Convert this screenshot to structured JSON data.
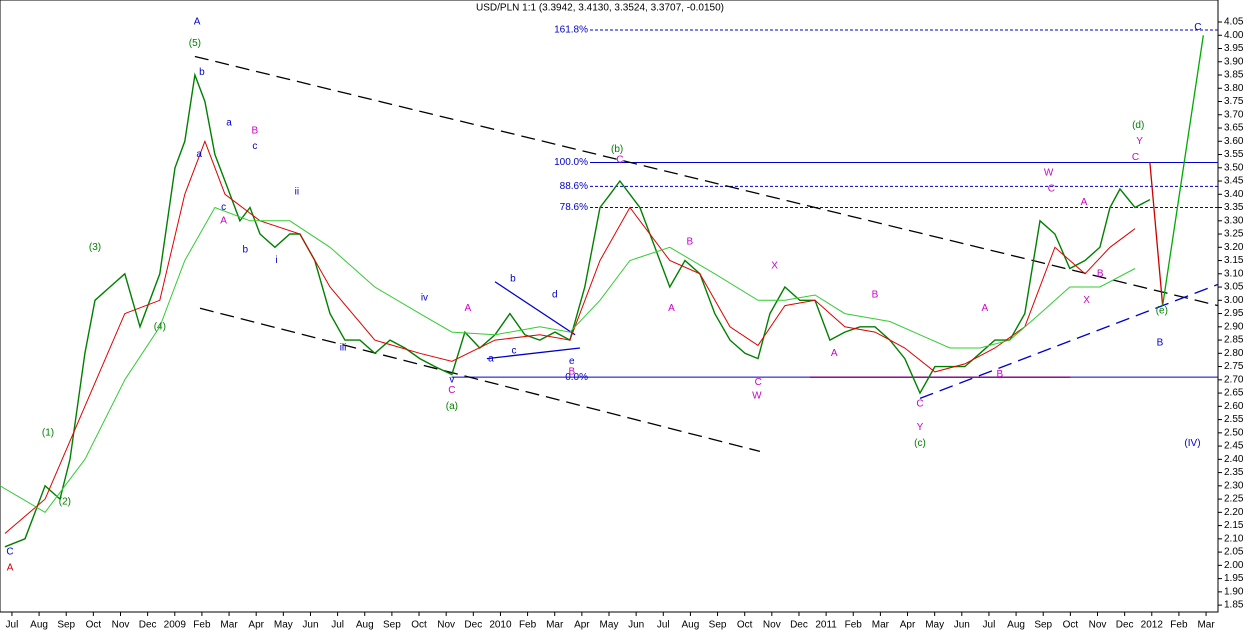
{
  "chart_data": {
    "type": "line",
    "title": "USD/PLN 1:1 (3.3942, 3.4130, 3.3524, 3.3707, -0.0150)",
    "xlim": [
      -0.44,
      44.44
    ],
    "ylim": [
      1.824,
      4.133
    ],
    "xticks": [
      {
        "value": 0,
        "label": "Jul"
      },
      {
        "value": 1,
        "label": "Aug"
      },
      {
        "value": 2,
        "label": "Sep"
      },
      {
        "value": 3,
        "label": "Oct"
      },
      {
        "value": 4,
        "label": "Nov"
      },
      {
        "value": 5,
        "label": "Dec"
      },
      {
        "value": 6,
        "label": "2009"
      },
      {
        "value": 7,
        "label": "Feb"
      },
      {
        "value": 8,
        "label": "Mar"
      },
      {
        "value": 9,
        "label": "Apr"
      },
      {
        "value": 10,
        "label": "May"
      },
      {
        "value": 11,
        "label": "Jun"
      },
      {
        "value": 12,
        "label": "Jul"
      },
      {
        "value": 13,
        "label": "Aug"
      },
      {
        "value": 14,
        "label": "Sep"
      },
      {
        "value": 15,
        "label": "Oct"
      },
      {
        "value": 16,
        "label": "Nov"
      },
      {
        "value": 17,
        "label": "Dec"
      },
      {
        "value": 18,
        "label": "2010"
      },
      {
        "value": 19,
        "label": "Feb"
      },
      {
        "value": 20,
        "label": "Mar"
      },
      {
        "value": 21,
        "label": "Apr"
      },
      {
        "value": 22,
        "label": "May"
      },
      {
        "value": 23,
        "label": "Jun"
      },
      {
        "value": 24,
        "label": "Jul"
      },
      {
        "value": 25,
        "label": "Aug"
      },
      {
        "value": 26,
        "label": "Sep"
      },
      {
        "value": 27,
        "label": "Oct"
      },
      {
        "value": 28,
        "label": "Nov"
      },
      {
        "value": 29,
        "label": "Dec"
      },
      {
        "value": 30,
        "label": "2011"
      },
      {
        "value": 31,
        "label": "Feb"
      },
      {
        "value": 32,
        "label": "Mar"
      },
      {
        "value": 33,
        "label": "Apr"
      },
      {
        "value": 34,
        "label": "May"
      },
      {
        "value": 35,
        "label": "Jun"
      },
      {
        "value": 36,
        "label": "Jul"
      },
      {
        "value": 37,
        "label": "Aug"
      },
      {
        "value": 38,
        "label": "Sep"
      },
      {
        "value": 39,
        "label": "Oct"
      },
      {
        "value": 40,
        "label": "Nov"
      },
      {
        "value": 41,
        "label": "Dec"
      },
      {
        "value": 42,
        "label": "2012"
      },
      {
        "value": 43,
        "label": "Feb"
      },
      {
        "value": 44,
        "label": "Mar"
      }
    ],
    "yticks": [
      {
        "value": 1.85,
        "label": "1.85"
      },
      {
        "value": 1.9,
        "label": "1.90"
      },
      {
        "value": 1.95,
        "label": "1.95"
      },
      {
        "value": 2,
        "label": "2.00"
      },
      {
        "value": 2.05,
        "label": "2.05"
      },
      {
        "value": 2.1,
        "label": "2.10"
      },
      {
        "value": 2.15,
        "label": "2.15"
      },
      {
        "value": 2.2,
        "label": "2.20"
      },
      {
        "value": 2.25,
        "label": "2.25"
      },
      {
        "value": 2.3,
        "label": "2.30"
      },
      {
        "value": 2.35,
        "label": "2.35"
      },
      {
        "value": 2.4,
        "label": "2.40"
      },
      {
        "value": 2.45,
        "label": "2.45"
      },
      {
        "value": 2.5,
        "label": "2.50"
      },
      {
        "value": 2.55,
        "label": "2.55"
      },
      {
        "value": 2.6,
        "label": "2.60"
      },
      {
        "value": 2.65,
        "label": "2.65"
      },
      {
        "value": 2.7,
        "label": "2.70"
      },
      {
        "value": 2.75,
        "label": "2.75"
      },
      {
        "value": 2.8,
        "label": "2.80"
      },
      {
        "value": 2.85,
        "label": "2.85"
      },
      {
        "value": 2.9,
        "label": "2.90"
      },
      {
        "value": 2.95,
        "label": "2.95"
      },
      {
        "value": 3,
        "label": "3.00"
      },
      {
        "value": 3.05,
        "label": "3.05"
      },
      {
        "value": 3.1,
        "label": "3.10"
      },
      {
        "value": 3.15,
        "label": "3.15"
      },
      {
        "value": 3.2,
        "label": "3.20"
      },
      {
        "value": 3.25,
        "label": "3.25"
      },
      {
        "value": 3.3,
        "label": "3.30"
      },
      {
        "value": 3.35,
        "label": "3.35"
      },
      {
        "value": 3.4,
        "label": "3.40"
      },
      {
        "value": 3.45,
        "label": "3.45"
      },
      {
        "value": 3.5,
        "label": "3.50"
      },
      {
        "value": 3.55,
        "label": "3.55"
      },
      {
        "value": 3.6,
        "label": "3.60"
      },
      {
        "value": 3.65,
        "label": "3.65"
      },
      {
        "value": 3.7,
        "label": "3.70"
      },
      {
        "value": 3.75,
        "label": "3.75"
      },
      {
        "value": 3.8,
        "label": "3.80"
      },
      {
        "value": 3.85,
        "label": "3.85"
      },
      {
        "value": 3.9,
        "label": "3.90"
      },
      {
        "value": 3.95,
        "label": "3.95"
      },
      {
        "value": 4,
        "label": "4.00"
      },
      {
        "value": 4.05,
        "label": "4.05"
      }
    ],
    "series": [
      {
        "color": "#008000",
        "width": 1.4,
        "x": [
          -0.26,
          0.48,
          1.22,
          1.77,
          2.14,
          2.69,
          3.06,
          3.61,
          4.16,
          4.72,
          5.45,
          6.01,
          6.37,
          6.74,
          7.11,
          7.48,
          7.85,
          8.4,
          8.77,
          9.14,
          9.69,
          10.24,
          10.61,
          11.16,
          11.72,
          12.27,
          12.82,
          13.37,
          13.93,
          14.48,
          15.03,
          15.59,
          16.21,
          16.69,
          17.24,
          17.8,
          18.35,
          18.9,
          19.45,
          20.01,
          20.56,
          21.11,
          21.67,
          22.04,
          22.4,
          22.77,
          23.14,
          23.69,
          24.24,
          24.8,
          25.35,
          25.9,
          26.46,
          27.01,
          27.49,
          27.93,
          28.48,
          29.03,
          29.59,
          30.14,
          30.69,
          31.25,
          31.8,
          32.35,
          32.9,
          33.46,
          34.01,
          34.56,
          35.11,
          35.67,
          36.22,
          36.77,
          37.32,
          37.88,
          38.43,
          38.98,
          39.54,
          40.09,
          40.46,
          40.83,
          41.38,
          41.93
        ],
        "values": [
          2.07,
          2.1,
          2.3,
          2.25,
          2.4,
          2.8,
          3.0,
          3.05,
          3.1,
          2.9,
          3.1,
          3.5,
          3.6,
          3.85,
          3.75,
          3.55,
          3.45,
          3.3,
          3.35,
          3.25,
          3.2,
          3.25,
          3.25,
          3.15,
          2.95,
          2.85,
          2.85,
          2.8,
          2.85,
          2.82,
          2.78,
          2.75,
          2.72,
          2.88,
          2.82,
          2.87,
          2.95,
          2.87,
          2.85,
          2.88,
          2.85,
          3.05,
          3.35,
          3.4,
          3.45,
          3.4,
          3.35,
          3.2,
          3.05,
          3.15,
          3.1,
          2.95,
          2.85,
          2.8,
          2.78,
          2.95,
          3.05,
          3.0,
          3.0,
          2.85,
          2.88,
          2.9,
          2.9,
          2.85,
          2.78,
          2.65,
          2.75,
          2.75,
          2.75,
          2.8,
          2.85,
          2.85,
          2.95,
          3.3,
          3.25,
          3.12,
          3.15,
          3.2,
          3.35,
          3.42,
          3.35,
          3.38
        ]
      },
      {
        "color": "#e00000",
        "width": 1,
        "x": [
          -0.26,
          1.22,
          2.69,
          4.16,
          5.45,
          6.37,
          7.11,
          7.85,
          9.14,
          10.61,
          11.72,
          13.37,
          15.03,
          16.21,
          17.8,
          19.45,
          20.56,
          21.67,
          22.77,
          24.24,
          25.35,
          26.46,
          27.49,
          28.48,
          29.59,
          30.69,
          31.8,
          32.9,
          34.01,
          35.11,
          36.22,
          37.32,
          38.43,
          39.54,
          40.46,
          41.38
        ],
        "values": [
          2.12,
          2.25,
          2.6,
          2.95,
          3.0,
          3.4,
          3.6,
          3.4,
          3.3,
          3.25,
          3.05,
          2.85,
          2.8,
          2.77,
          2.85,
          2.87,
          2.85,
          3.15,
          3.35,
          3.15,
          3.1,
          2.9,
          2.83,
          2.98,
          3.0,
          2.9,
          2.88,
          2.82,
          2.73,
          2.76,
          2.82,
          2.9,
          3.2,
          3.1,
          3.2,
          3.27
        ]
      },
      {
        "color": "#33cc33",
        "width": 1,
        "x": [
          -0.44,
          1.22,
          2.69,
          4.16,
          5.45,
          6.37,
          7.48,
          8.77,
          10.24,
          11.72,
          13.37,
          15.03,
          16.21,
          17.8,
          19.45,
          20.56,
          21.67,
          22.77,
          24.24,
          25.9,
          27.49,
          28.48,
          29.59,
          30.69,
          32.35,
          33.46,
          34.56,
          35.67,
          36.77,
          37.88,
          38.98,
          40.09,
          41.38
        ],
        "values": [
          2.3,
          2.2,
          2.4,
          2.7,
          2.9,
          3.15,
          3.35,
          3.3,
          3.3,
          3.2,
          3.05,
          2.95,
          2.88,
          2.87,
          2.9,
          2.88,
          3.0,
          3.15,
          3.2,
          3.1,
          3.0,
          3.0,
          3.02,
          2.95,
          2.92,
          2.87,
          2.82,
          2.82,
          2.85,
          2.95,
          3.05,
          3.05,
          3.12
        ]
      }
    ],
    "levels": [
      {
        "label": "161.8%",
        "value": 4.02,
        "start": 21.3,
        "dash": true
      },
      {
        "label": "100.0%",
        "value": 3.52,
        "start": 21.3,
        "dash": false
      },
      {
        "label": "88.6%",
        "value": 3.43,
        "start": 21.3,
        "dash": true
      },
      {
        "label": "78.6%",
        "value": 3.35,
        "start": 21.3,
        "dash": true
      },
      {
        "label": "0.0%",
        "value": 2.71,
        "start": 16.2,
        "dash": false
      }
    ],
    "trendlines": [
      {
        "x": [
          6.74,
          44.44
        ],
        "y": [
          3.92,
          2.98
        ],
        "color": "#000000",
        "dash": true
      },
      {
        "x": [
          6.93,
          27.56
        ],
        "y": [
          2.97,
          2.43
        ],
        "color": "#000000",
        "dash": true
      },
      {
        "x": [
          33.46,
          44.44
        ],
        "y": [
          2.63,
          3.06
        ],
        "color": "#0000cc",
        "dash": true
      },
      {
        "x": [
          17.8,
          20.75
        ],
        "y": [
          3.07,
          2.87
        ],
        "color": "#0000cc",
        "dash": false
      },
      {
        "x": [
          17.5,
          20.93
        ],
        "y": [
          2.78,
          2.82
        ],
        "color": "#0000cc",
        "dash": false
      },
      {
        "x": [
          29.4,
          39.0
        ],
        "y": [
          2.71,
          2.71
        ],
        "color": "#800080",
        "dash": false
      },
      {
        "x": [
          41.93,
          42.4
        ],
        "y": [
          3.52,
          2.98
        ],
        "color": "#cc0000",
        "dash": false
      },
      {
        "x": [
          42.4,
          43.9
        ],
        "y": [
          2.98,
          4.0
        ],
        "color": "#00aa00",
        "dash": false
      }
    ],
    "annotations": [
      {
        "text": "A",
        "x": 6.82,
        "y": 4.05,
        "color": "#0000cc"
      },
      {
        "text": "(5)",
        "x": 6.74,
        "y": 3.97,
        "color": "#008000"
      },
      {
        "text": "b",
        "x": 7.0,
        "y": 3.86,
        "color": "#0000cc"
      },
      {
        "text": "a",
        "x": 8.0,
        "y": 3.67,
        "color": "#0000cc"
      },
      {
        "text": "B",
        "x": 8.95,
        "y": 3.64,
        "color": "#cc00cc"
      },
      {
        "text": "c",
        "x": 8.95,
        "y": 3.58,
        "color": "#0000cc"
      },
      {
        "text": "a",
        "x": 6.9,
        "y": 3.55,
        "color": "#0000cc"
      },
      {
        "text": "c",
        "x": 7.8,
        "y": 3.35,
        "color": "#0000cc"
      },
      {
        "text": "A",
        "x": 7.8,
        "y": 3.3,
        "color": "#cc00cc"
      },
      {
        "text": "b",
        "x": 8.6,
        "y": 3.19,
        "color": "#0000cc"
      },
      {
        "text": "ii",
        "x": 10.5,
        "y": 3.41,
        "color": "#0000cc"
      },
      {
        "text": "i",
        "x": 9.75,
        "y": 3.15,
        "color": "#0000cc"
      },
      {
        "text": "iii",
        "x": 12.2,
        "y": 2.82,
        "color": "#0000cc"
      },
      {
        "text": "iv",
        "x": 15.2,
        "y": 3.01,
        "color": "#0000cc"
      },
      {
        "text": "(3)",
        "x": 3.06,
        "y": 3.2,
        "color": "#008000"
      },
      {
        "text": "(4)",
        "x": 5.45,
        "y": 2.9,
        "color": "#008000"
      },
      {
        "text": "(1)",
        "x": 1.33,
        "y": 2.5,
        "color": "#008000"
      },
      {
        "text": "(2)",
        "x": 1.95,
        "y": 2.24,
        "color": "#008000"
      },
      {
        "text": "C",
        "x": -0.07,
        "y": 2.05,
        "color": "#0000cc"
      },
      {
        "text": "A",
        "x": -0.07,
        "y": 1.99,
        "color": "#cc0000"
      },
      {
        "text": "v",
        "x": 16.21,
        "y": 2.7,
        "color": "#0000cc"
      },
      {
        "text": "C",
        "x": 16.21,
        "y": 2.66,
        "color": "#cc00cc"
      },
      {
        "text": "(a)",
        "x": 16.21,
        "y": 2.6,
        "color": "#008000"
      },
      {
        "text": "A",
        "x": 16.8,
        "y": 2.97,
        "color": "#cc00cc"
      },
      {
        "text": "b",
        "x": 18.46,
        "y": 3.08,
        "color": "#0000cc"
      },
      {
        "text": "d",
        "x": 20.0,
        "y": 3.02,
        "color": "#0000cc"
      },
      {
        "text": "a",
        "x": 17.65,
        "y": 2.78,
        "color": "#0000cc"
      },
      {
        "text": "c",
        "x": 18.5,
        "y": 2.81,
        "color": "#0000cc"
      },
      {
        "text": "e",
        "x": 20.63,
        "y": 2.77,
        "color": "#0000cc"
      },
      {
        "text": "B",
        "x": 20.63,
        "y": 2.73,
        "color": "#cc00cc"
      },
      {
        "text": "(b)",
        "x": 22.3,
        "y": 3.57,
        "color": "#008000"
      },
      {
        "text": "C",
        "x": 22.4,
        "y": 3.53,
        "color": "#cc00cc"
      },
      {
        "text": "B",
        "x": 24.98,
        "y": 3.22,
        "color": "#cc00cc"
      },
      {
        "text": "A",
        "x": 24.3,
        "y": 2.97,
        "color": "#cc00cc"
      },
      {
        "text": "X",
        "x": 28.1,
        "y": 3.13,
        "color": "#cc00cc"
      },
      {
        "text": "C",
        "x": 27.5,
        "y": 2.69,
        "color": "#cc00cc"
      },
      {
        "text": "W",
        "x": 27.45,
        "y": 2.64,
        "color": "#cc00cc"
      },
      {
        "text": "B",
        "x": 31.8,
        "y": 3.02,
        "color": "#cc00cc"
      },
      {
        "text": "A",
        "x": 30.3,
        "y": 2.8,
        "color": "#cc00cc"
      },
      {
        "text": "C",
        "x": 33.46,
        "y": 2.61,
        "color": "#cc00cc"
      },
      {
        "text": "Y",
        "x": 33.46,
        "y": 2.52,
        "color": "#cc00cc"
      },
      {
        "text": "(c)",
        "x": 33.46,
        "y": 2.46,
        "color": "#008000"
      },
      {
        "text": "A",
        "x": 35.85,
        "y": 2.97,
        "color": "#cc00cc"
      },
      {
        "text": "B",
        "x": 36.4,
        "y": 2.72,
        "color": "#cc00cc"
      },
      {
        "text": "W",
        "x": 38.2,
        "y": 3.48,
        "color": "#cc00cc"
      },
      {
        "text": "C",
        "x": 38.3,
        "y": 3.42,
        "color": "#cc00cc"
      },
      {
        "text": "A",
        "x": 39.5,
        "y": 3.37,
        "color": "#cc00cc"
      },
      {
        "text": "B",
        "x": 40.1,
        "y": 3.1,
        "color": "#cc00cc"
      },
      {
        "text": "X",
        "x": 39.6,
        "y": 3.0,
        "color": "#cc00cc"
      },
      {
        "text": "(d)",
        "x": 41.5,
        "y": 3.66,
        "color": "#008000"
      },
      {
        "text": "Y",
        "x": 41.55,
        "y": 3.6,
        "color": "#cc00cc"
      },
      {
        "text": "C",
        "x": 41.4,
        "y": 3.54,
        "color": "#cc00cc"
      },
      {
        "text": "(e)",
        "x": 42.37,
        "y": 2.96,
        "color": "#008000"
      },
      {
        "text": "B",
        "x": 42.3,
        "y": 2.84,
        "color": "#0000cc"
      },
      {
        "text": "(IV)",
        "x": 43.5,
        "y": 2.46,
        "color": "#0000cc"
      },
      {
        "text": "C",
        "x": 43.7,
        "y": 4.03,
        "color": "#0000cc"
      }
    ]
  }
}
